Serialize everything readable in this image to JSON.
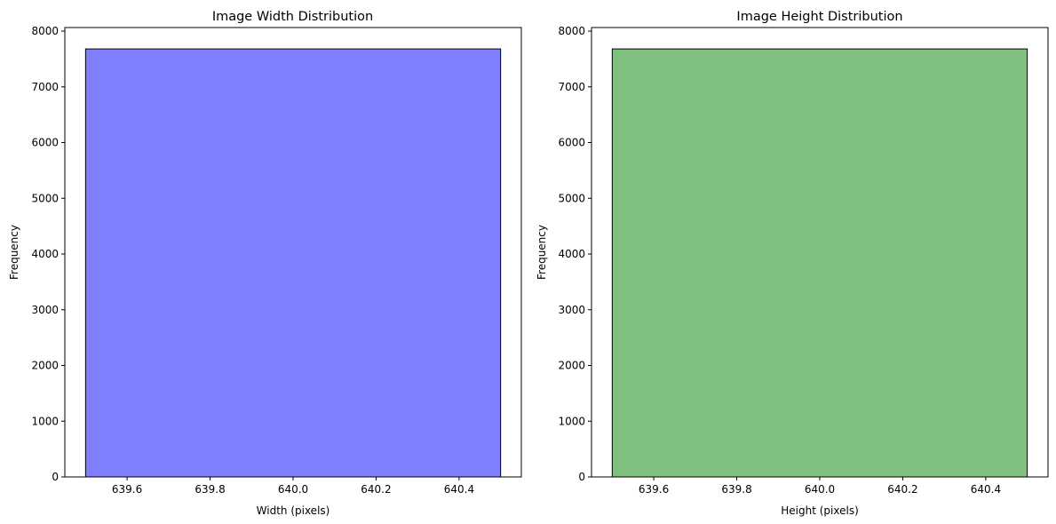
{
  "chart_data": [
    {
      "type": "bar",
      "title": "Image Width Distribution",
      "xlabel": "Width (pixels)",
      "ylabel": "Frequency",
      "bins": [
        {
          "x0": 639.5,
          "x1": 640.5,
          "value": 7680
        }
      ],
      "xlim": [
        639.45,
        640.55
      ],
      "ylim": [
        0,
        8064
      ],
      "xticks": [
        639.6,
        639.8,
        640.0,
        640.2,
        640.4
      ],
      "xtick_labels": [
        "639.6",
        "639.8",
        "640.0",
        "640.2",
        "640.4"
      ],
      "yticks": [
        0,
        1000,
        2000,
        3000,
        4000,
        5000,
        6000,
        7000,
        8000
      ],
      "ytick_labels": [
        "0",
        "1000",
        "2000",
        "3000",
        "4000",
        "5000",
        "6000",
        "7000",
        "8000"
      ],
      "bar_color": "#8080ff",
      "edge_color": "#000000",
      "grid": false
    },
    {
      "type": "bar",
      "title": "Image Height Distribution",
      "xlabel": "Height (pixels)",
      "ylabel": "Frequency",
      "bins": [
        {
          "x0": 639.5,
          "x1": 640.5,
          "value": 7680
        }
      ],
      "xlim": [
        639.45,
        640.55
      ],
      "ylim": [
        0,
        8064
      ],
      "xticks": [
        639.6,
        639.8,
        640.0,
        640.2,
        640.4
      ],
      "xtick_labels": [
        "639.6",
        "639.8",
        "640.0",
        "640.2",
        "640.4"
      ],
      "yticks": [
        0,
        1000,
        2000,
        3000,
        4000,
        5000,
        6000,
        7000,
        8000
      ],
      "ytick_labels": [
        "0",
        "1000",
        "2000",
        "3000",
        "4000",
        "5000",
        "6000",
        "7000",
        "8000"
      ],
      "bar_color": "#80c080",
      "edge_color": "#000000",
      "grid": false
    }
  ]
}
